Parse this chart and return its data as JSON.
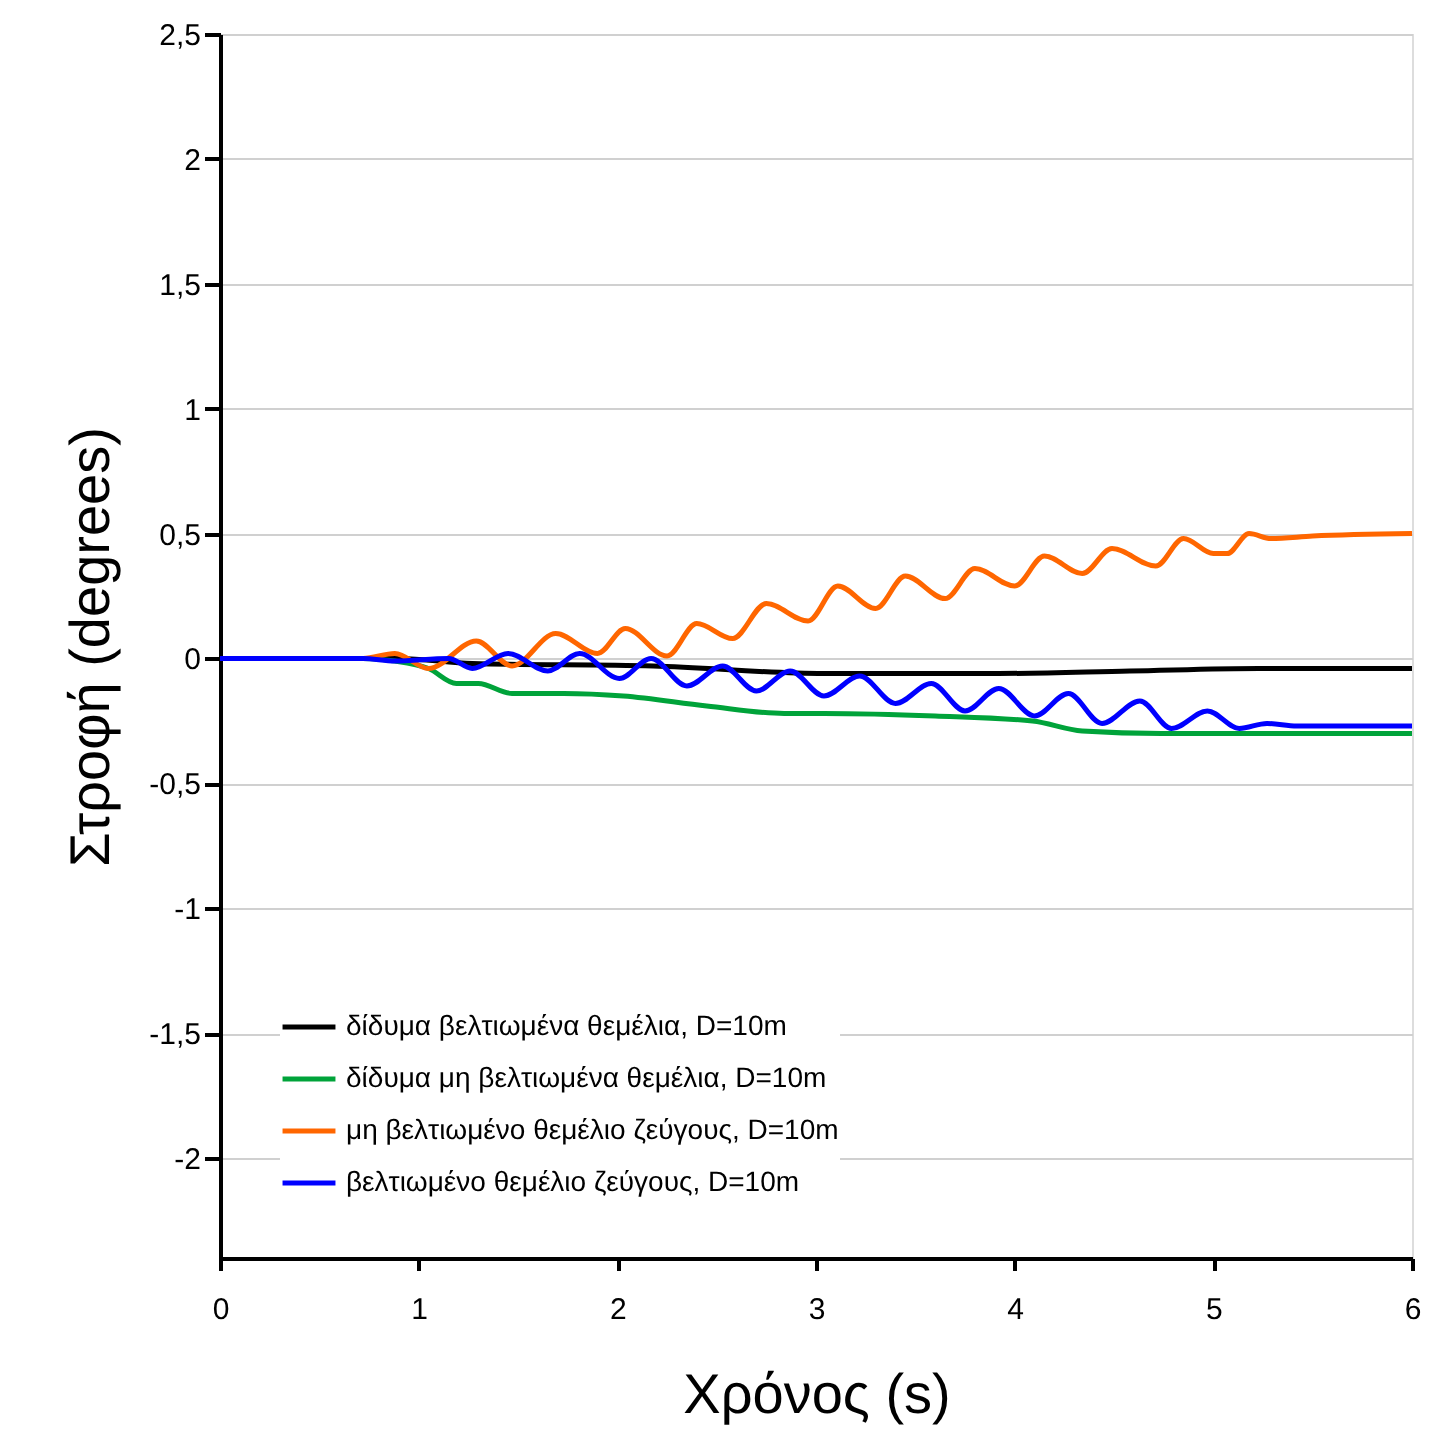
{
  "chart_data": {
    "type": "line",
    "xlabel": "Χρόνος (s)",
    "ylabel": "Στροφή (degrees)",
    "xlim": [
      0,
      6
    ],
    "xticks": [
      0,
      1,
      2,
      3,
      4,
      5,
      6
    ],
    "ylim": [
      -2.4,
      2.5
    ],
    "yticks": [
      {
        "value": -2,
        "label": "-2"
      },
      {
        "value": -1.5,
        "label": "-1,5"
      },
      {
        "value": -1,
        "label": "-1"
      },
      {
        "value": -0.5,
        "label": "-0,5"
      },
      {
        "value": 0,
        "label": "0"
      },
      {
        "value": 0.5,
        "label": "0,5"
      },
      {
        "value": 1,
        "label": "1"
      },
      {
        "value": 1.5,
        "label": "1,5"
      },
      {
        "value": 2,
        "label": "2"
      },
      {
        "value": 2.5,
        "label": "2,5"
      }
    ],
    "grid": "y",
    "legend": "bottom left",
    "line_style": "solid",
    "series": [
      {
        "name": "δίδυμα βελτιωμένα θεμέλια, D=10m",
        "color": "#000000",
        "x": [
          0,
          0.9,
          1.27,
          2.18,
          3.04,
          3.92,
          4.58,
          5.23,
          6
        ],
        "values": [
          0,
          0,
          -0.02,
          -0.03,
          -0.06,
          -0.06,
          -0.05,
          -0.04,
          -0.04
        ]
      },
      {
        "name": "δίδυμα μη βελτιωμένα θεμέλια, D=10m",
        "color": "#00a33a",
        "x": [
          0,
          0.72,
          0.88,
          1.05,
          1.19,
          1.3,
          1.47,
          1.73,
          2.03,
          2.45,
          2.84,
          3.04,
          3.6,
          4.09,
          4.34,
          4.74,
          5.23,
          6
        ],
        "values": [
          0,
          0,
          -0.01,
          -0.04,
          -0.1,
          -0.1,
          -0.14,
          -0.14,
          -0.15,
          -0.19,
          -0.22,
          -0.22,
          -0.23,
          -0.25,
          -0.29,
          -0.3,
          -0.3,
          -0.3
        ]
      },
      {
        "name": "μη βελτιωμένο θεμέλιο ζεύγους, D=10m",
        "color": "#ff6600",
        "x": [
          0,
          0.72,
          0.88,
          1.05,
          1.29,
          1.47,
          1.69,
          1.9,
          2.04,
          2.25,
          2.4,
          2.58,
          2.75,
          2.96,
          3.11,
          3.3,
          3.45,
          3.65,
          3.8,
          4.0,
          4.15,
          4.34,
          4.49,
          4.71,
          4.85,
          5.0,
          5.07,
          5.18,
          5.29,
          5.5,
          6
        ],
        "values": [
          0,
          0,
          0.02,
          -0.04,
          0.07,
          -0.03,
          0.1,
          0.02,
          0.12,
          0.01,
          0.14,
          0.08,
          0.22,
          0.15,
          0.29,
          0.2,
          0.33,
          0.24,
          0.36,
          0.29,
          0.41,
          0.34,
          0.44,
          0.37,
          0.48,
          0.42,
          0.42,
          0.5,
          0.48,
          0.49,
          0.5
        ]
      },
      {
        "name": "βελτιωμένο θεμέλιο ζεύγους, D=10m",
        "color": "#0000ff",
        "x": [
          0,
          0.72,
          0.88,
          1.15,
          1.27,
          1.45,
          1.65,
          1.81,
          2.01,
          2.17,
          2.35,
          2.53,
          2.7,
          2.87,
          3.04,
          3.22,
          3.4,
          3.58,
          3.75,
          3.92,
          4.1,
          4.27,
          4.44,
          4.63,
          4.79,
          4.97,
          5.13,
          5.27,
          5.42,
          6
        ],
        "values": [
          0,
          0,
          -0.01,
          0,
          -0.04,
          0.02,
          -0.05,
          0.02,
          -0.08,
          0,
          -0.11,
          -0.03,
          -0.13,
          -0.05,
          -0.15,
          -0.07,
          -0.18,
          -0.1,
          -0.21,
          -0.12,
          -0.23,
          -0.14,
          -0.26,
          -0.17,
          -0.28,
          -0.21,
          -0.28,
          -0.26,
          -0.27,
          -0.27
        ]
      }
    ]
  }
}
